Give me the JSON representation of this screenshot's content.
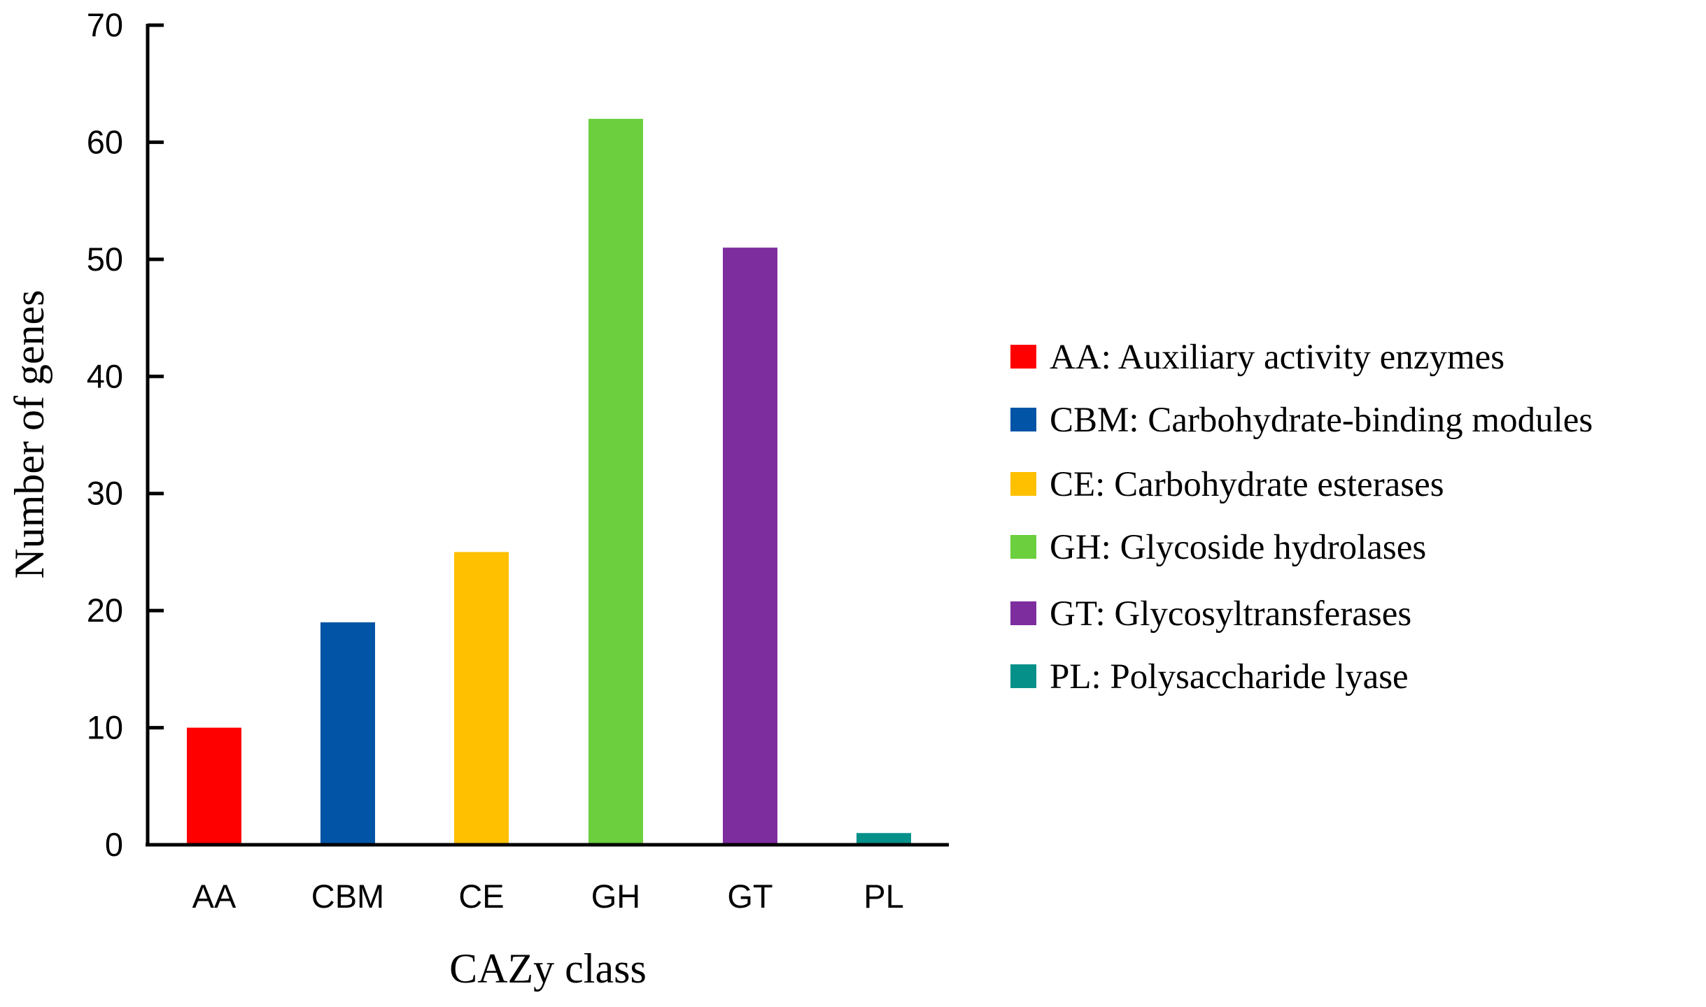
{
  "chart_data": {
    "type": "bar",
    "title": "",
    "xlabel": "CAZy class",
    "ylabel": "Number of genes",
    "categories": [
      "AA",
      "CBM",
      "CE",
      "GH",
      "GT",
      "PL"
    ],
    "values": [
      10,
      19,
      25,
      62,
      51,
      1
    ],
    "colors": [
      "#ff0000",
      "#0254a6",
      "#ffc000",
      "#6ccf3e",
      "#7e2d9f",
      "#05908a"
    ],
    "ylim": [
      0,
      70
    ],
    "yticks": [
      0,
      10,
      20,
      30,
      40,
      50,
      60,
      70
    ],
    "grid": false,
    "legend_position": "right",
    "legend": [
      "AA: Auxiliary activity enzymes",
      "CBM: Carbohydrate-binding modules",
      "CE: Carbohydrate esterases",
      "GH: Glycoside hydrolases",
      "GT: Glycosyltransferases",
      "PL: Polysaccharide lyase"
    ]
  }
}
